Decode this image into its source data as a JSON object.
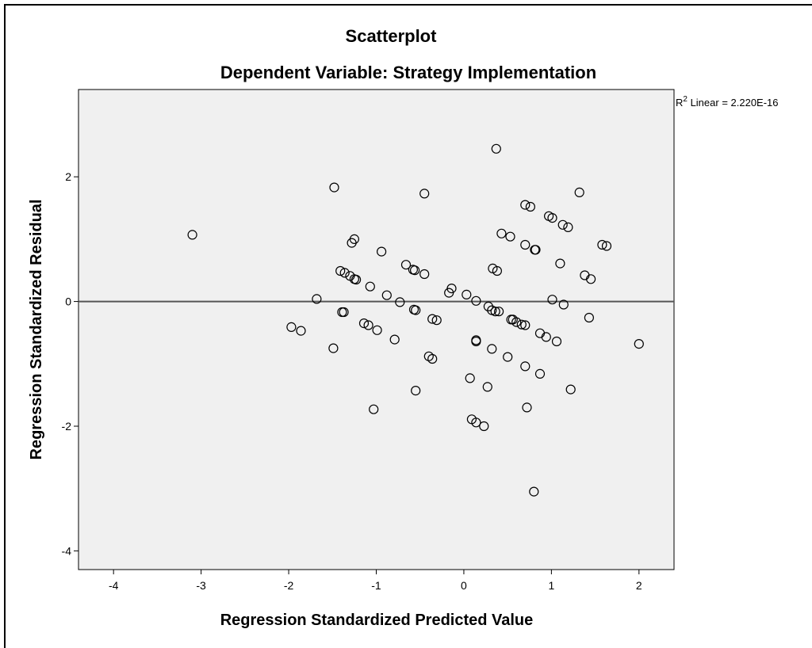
{
  "chart_data": {
    "type": "scatter",
    "title": "Scatterplot",
    "subtitle": "Dependent Variable: Strategy Implementation",
    "xlabel": "Regression Standardized Predicted Value",
    "ylabel": "Regression Standardized Residual",
    "xlim": [
      -4.4,
      2.4
    ],
    "ylim": [
      -4.3,
      3.4
    ],
    "xticks": [
      -4,
      -3,
      -2,
      -1,
      0,
      1,
      2
    ],
    "yticks": [
      -4,
      -2,
      0,
      2
    ],
    "grid": false,
    "background_color": "#f0f0f0",
    "marker": "open-circle",
    "fit_line": {
      "slope": 0,
      "intercept": 0,
      "label_base": "R",
      "label_sup": "2",
      "label_text": " Linear = 2.220E-16"
    },
    "points": [
      [
        -3.1,
        1.07
      ],
      [
        -1.97,
        -0.41
      ],
      [
        -1.86,
        -0.47
      ],
      [
        -1.68,
        0.04
      ],
      [
        -1.48,
        1.83
      ],
      [
        -1.49,
        -0.75
      ],
      [
        -1.41,
        0.49
      ],
      [
        -1.36,
        0.46
      ],
      [
        -1.39,
        -0.17
      ],
      [
        -1.37,
        -0.17
      ],
      [
        -1.3,
        0.41
      ],
      [
        -1.25,
        0.36
      ],
      [
        -1.23,
        0.35
      ],
      [
        -1.28,
        0.94
      ],
      [
        -1.25,
        1.0
      ],
      [
        -1.14,
        -0.35
      ],
      [
        -1.09,
        -0.38
      ],
      [
        -1.07,
        0.24
      ],
      [
        -1.03,
        -1.73
      ],
      [
        -0.99,
        -0.46
      ],
      [
        -0.94,
        0.8
      ],
      [
        -0.88,
        0.1
      ],
      [
        -0.79,
        -0.61
      ],
      [
        -0.73,
        -0.01
      ],
      [
        -0.66,
        0.59
      ],
      [
        -0.58,
        0.51
      ],
      [
        -0.56,
        0.5
      ],
      [
        -0.57,
        -0.13
      ],
      [
        -0.55,
        -0.14
      ],
      [
        -0.55,
        -1.43
      ],
      [
        -0.45,
        1.73
      ],
      [
        -0.45,
        0.44
      ],
      [
        -0.4,
        -0.88
      ],
      [
        -0.36,
        -0.92
      ],
      [
        -0.36,
        -0.28
      ],
      [
        -0.31,
        -0.3
      ],
      [
        -0.17,
        0.14
      ],
      [
        -0.14,
        0.21
      ],
      [
        0.03,
        0.11
      ],
      [
        0.07,
        -1.23
      ],
      [
        0.09,
        -1.89
      ],
      [
        0.14,
        -1.94
      ],
      [
        0.14,
        0.01
      ],
      [
        0.14,
        -0.62
      ],
      [
        0.14,
        -0.64
      ],
      [
        0.23,
        -2.0
      ],
      [
        0.27,
        -1.37
      ],
      [
        0.28,
        -0.08
      ],
      [
        0.32,
        -0.14
      ],
      [
        0.33,
        0.53
      ],
      [
        0.32,
        -0.76
      ],
      [
        0.37,
        2.45
      ],
      [
        0.38,
        0.49
      ],
      [
        0.36,
        -0.16
      ],
      [
        0.4,
        -0.16
      ],
      [
        0.43,
        1.09
      ],
      [
        0.5,
        -0.89
      ],
      [
        0.53,
        1.04
      ],
      [
        0.54,
        -0.29
      ],
      [
        0.56,
        -0.29
      ],
      [
        0.6,
        -0.33
      ],
      [
        0.66,
        -0.37
      ],
      [
        0.7,
        -0.38
      ],
      [
        0.7,
        0.91
      ],
      [
        0.7,
        -1.04
      ],
      [
        0.7,
        1.55
      ],
      [
        0.72,
        -1.7
      ],
      [
        0.76,
        1.52
      ],
      [
        0.81,
        0.83
      ],
      [
        0.82,
        0.83
      ],
      [
        0.8,
        -3.05
      ],
      [
        0.87,
        -0.51
      ],
      [
        0.87,
        -1.16
      ],
      [
        0.94,
        -0.57
      ],
      [
        0.97,
        1.37
      ],
      [
        1.01,
        0.03
      ],
      [
        1.01,
        1.34
      ],
      [
        1.06,
        -0.64
      ],
      [
        1.1,
        0.61
      ],
      [
        1.13,
        1.23
      ],
      [
        1.14,
        -0.05
      ],
      [
        1.19,
        1.19
      ],
      [
        1.22,
        -1.41
      ],
      [
        1.32,
        1.75
      ],
      [
        1.38,
        0.42
      ],
      [
        1.43,
        -0.26
      ],
      [
        1.45,
        0.36
      ],
      [
        1.58,
        0.91
      ],
      [
        1.63,
        0.89
      ],
      [
        2.0,
        -0.68
      ]
    ]
  }
}
